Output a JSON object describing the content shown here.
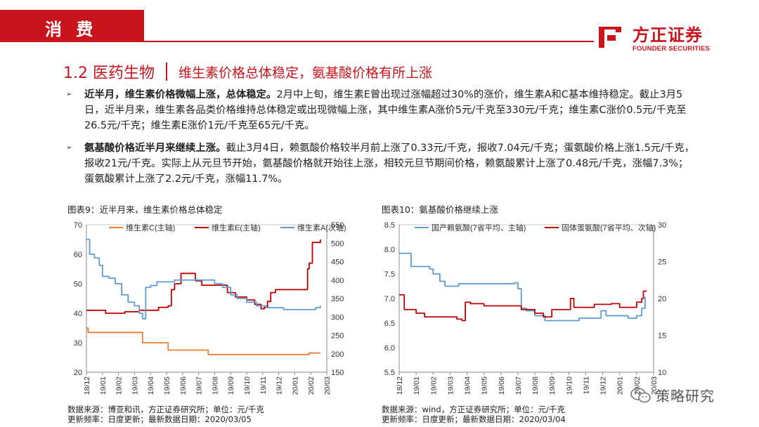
{
  "header": {
    "section_tag": "消 费",
    "logo_cn": "方正证券",
    "logo_en": "FOUNDER SECURITIES"
  },
  "title": {
    "number": "1.2 医药生物",
    "subtitle": "维生素价格总体稳定，氨基酸价格有所上涨"
  },
  "bullets": [
    {
      "bold": "近半月，维生素价格微幅上涨，总体稳定。",
      "text": "2月中上旬，维生素E曾出现过涨幅超过30%的涨价，维生素A和C基本维持稳定。截止3月5日，近半月来，维生素各品类价格维持总体稳定或出现微幅上涨，其中维生素A涨价5元/千克至330元/千克；维生素C涨价0.5元/千克至26.5元/千克；维生素E涨价1元/千克至65元/千克。"
    },
    {
      "bold": "氨基酸价格近半月来继续上涨。",
      "text": "截止3月4日，赖氨酸价格较半月前上涨了0.33元/千克，报收7.04元/千克；蛋氨酸价格上涨1.5元/千克，报收21元/千克。实际上从元旦节开始，氨基酸价格就开始往上涨，相较元旦节期间价格，赖氨酸累计上涨了0.48元/千克，涨幅7.3%；蛋氨酸累计上涨了2.2元/千克，涨幅11.7%。"
    }
  ],
  "chart1": {
    "title": "图表9：近半月来，维生素价格总体稳定",
    "source": "数据来源：博亚和讯，方正证券研究所；单位：元/千克",
    "update": "更新频率：日度更新；最新数据日期：2020/03/05"
  },
  "chart2": {
    "title": "图表10：氨基酸价格继续上涨",
    "source": "数据来源：wind，方正证券研究所；单位：元/千克",
    "update": "更新频率：日度更新；最新数据日期：2020/03/04"
  },
  "watermark": "策略研究",
  "colors": {
    "brand_red": "#c8151d",
    "orange": "#ed7d31",
    "red": "#c00000",
    "blue": "#5b9bd5"
  },
  "chart_data": [
    {
      "type": "line",
      "title": "图表9：近半月来，维生素价格总体稳定",
      "categories": [
        "18/12",
        "19/01",
        "19/02",
        "19/03",
        "19/04",
        "19/05",
        "19/06",
        "19/07",
        "19/08",
        "19/09",
        "19/10",
        "19/11",
        "19/12",
        "20/01",
        "20/02",
        "20/03"
      ],
      "y_left": {
        "ylim": [
          20,
          70
        ],
        "ticks": [
          "20",
          "30",
          "40",
          "50",
          "60",
          "70"
        ]
      },
      "y_right": {
        "ylim": [
          150,
          550
        ],
        "ticks": [
          "150",
          "200",
          "250",
          "300",
          "350",
          "400",
          "450",
          "500",
          "550"
        ]
      },
      "legend": "top",
      "series": [
        {
          "name": "维生素C(主轴)",
          "axis": "left",
          "color": "#ed7d31",
          "points": [
            [
              0,
              35
            ],
            [
              0.1,
              33.5
            ],
            [
              3.4,
              33.5
            ],
            [
              3.5,
              30
            ],
            [
              5.0,
              30
            ],
            [
              5.1,
              27.5
            ],
            [
              7.5,
              27.5
            ],
            [
              7.6,
              26
            ],
            [
              13.8,
              26
            ],
            [
              13.9,
              26.5
            ],
            [
              14.6,
              26.5
            ]
          ]
        },
        {
          "name": "维生素E(主轴)",
          "axis": "left",
          "color": "#c00000",
          "points": [
            [
              0,
              41
            ],
            [
              1.0,
              41
            ],
            [
              1.2,
              40
            ],
            [
              2.2,
              40
            ],
            [
              2.4,
              40.5
            ],
            [
              3.0,
              40.5
            ],
            [
              3.3,
              41
            ],
            [
              4.3,
              41
            ],
            [
              4.5,
              42
            ],
            [
              5.1,
              42.5
            ],
            [
              5.3,
              48
            ],
            [
              5.5,
              50
            ],
            [
              5.9,
              53.5
            ],
            [
              6.3,
              53.5
            ],
            [
              6.8,
              51
            ],
            [
              7.2,
              49.5
            ],
            [
              8.5,
              49.5
            ],
            [
              8.8,
              47
            ],
            [
              9.3,
              45.5
            ],
            [
              10.0,
              44.5
            ],
            [
              10.5,
              43
            ],
            [
              10.9,
              41.5
            ],
            [
              11.1,
              42
            ],
            [
              11.3,
              44
            ],
            [
              11.5,
              47
            ],
            [
              11.8,
              48
            ],
            [
              13.7,
              48
            ],
            [
              13.8,
              55
            ],
            [
              13.9,
              57
            ],
            [
              14.1,
              64
            ],
            [
              14.5,
              64
            ],
            [
              14.6,
              65
            ]
          ]
        },
        {
          "name": "维生素A(次轴)",
          "axis": "right",
          "color": "#5b9bd5",
          "points": [
            [
              0,
              510
            ],
            [
              0.2,
              470
            ],
            [
              0.5,
              460
            ],
            [
              0.8,
              440
            ],
            [
              1.0,
              410
            ],
            [
              1.4,
              405
            ],
            [
              1.8,
              390
            ],
            [
              2.2,
              360
            ],
            [
              2.6,
              340
            ],
            [
              3.0,
              330
            ],
            [
              3.3,
              310
            ],
            [
              3.5,
              295
            ],
            [
              3.7,
              380
            ],
            [
              4.0,
              385
            ],
            [
              4.4,
              395
            ],
            [
              5.0,
              395
            ],
            [
              5.5,
              400
            ],
            [
              7.5,
              400
            ],
            [
              8.0,
              390
            ],
            [
              8.5,
              380
            ],
            [
              9.0,
              360
            ],
            [
              9.4,
              350
            ],
            [
              10.0,
              340
            ],
            [
              10.6,
              330
            ],
            [
              11.2,
              325
            ],
            [
              12.3,
              320
            ],
            [
              14.0,
              320
            ],
            [
              14.3,
              325
            ],
            [
              14.6,
              330
            ]
          ]
        }
      ]
    },
    {
      "type": "line",
      "title": "图表10：氨基酸价格继续上涨",
      "categories": [
        "18/12",
        "19/01",
        "19/02",
        "19/03",
        "19/04",
        "19/05",
        "19/06",
        "19/07",
        "19/08",
        "19/09",
        "19/10",
        "19/11",
        "19/12",
        "20/01",
        "20/02",
        "20/03"
      ],
      "y_left": {
        "ylim": [
          5.5,
          8.5
        ],
        "ticks": [
          "5.5",
          "6.0",
          "6.5",
          "7.0",
          "7.5",
          "8.0",
          "8.5"
        ]
      },
      "y_right": {
        "ylim": [
          10,
          30
        ],
        "ticks": [
          "10",
          "15",
          "20",
          "25",
          "30"
        ]
      },
      "legend": "top",
      "series": [
        {
          "name": "国产赖氨酸(7省平均、主轴)",
          "axis": "left",
          "color": "#5b9bd5",
          "points": [
            [
              0,
              7.92
            ],
            [
              0.5,
              7.92
            ],
            [
              0.7,
              7.65
            ],
            [
              1.8,
              7.6
            ],
            [
              2.0,
              7.5
            ],
            [
              2.4,
              7.35
            ],
            [
              2.7,
              7.25
            ],
            [
              3.3,
              7.25
            ],
            [
              3.5,
              7.3
            ],
            [
              6.8,
              7.32
            ],
            [
              7.0,
              7.2
            ],
            [
              7.2,
              6.8
            ],
            [
              7.5,
              6.75
            ],
            [
              8.0,
              6.65
            ],
            [
              8.6,
              6.55
            ],
            [
              10.5,
              6.55
            ],
            [
              10.6,
              6.6
            ],
            [
              11.8,
              6.6
            ],
            [
              11.9,
              6.75
            ],
            [
              12.2,
              6.65
            ],
            [
              13.5,
              6.6
            ],
            [
              14.0,
              6.65
            ],
            [
              14.3,
              6.8
            ],
            [
              14.5,
              7.04
            ]
          ]
        },
        {
          "name": "固体蛋氨酸(7省平均、次轴)",
          "axis": "right",
          "color": "#c00000",
          "points": [
            [
              0,
              20.5
            ],
            [
              0.3,
              18.5
            ],
            [
              1.0,
              18
            ],
            [
              1.5,
              17.5
            ],
            [
              3.0,
              17.5
            ],
            [
              3.4,
              17.2
            ],
            [
              3.7,
              17.0
            ],
            [
              3.9,
              19.5
            ],
            [
              4.2,
              19.3
            ],
            [
              5.0,
              19.0
            ],
            [
              6.8,
              19.0
            ],
            [
              7.2,
              18.5
            ],
            [
              8.0,
              18.0
            ],
            [
              8.5,
              17.5
            ],
            [
              9.0,
              18.5
            ],
            [
              10.0,
              18.5
            ],
            [
              10.1,
              20.0
            ],
            [
              10.3,
              18.8
            ],
            [
              11.0,
              18.8
            ],
            [
              11.5,
              19.2
            ],
            [
              12.5,
              19.3
            ],
            [
              13.0,
              18.8
            ],
            [
              13.5,
              18.8
            ],
            [
              14.0,
              19.5
            ],
            [
              14.3,
              20.0
            ],
            [
              14.4,
              21.0
            ],
            [
              14.6,
              21.0
            ]
          ]
        }
      ]
    }
  ]
}
